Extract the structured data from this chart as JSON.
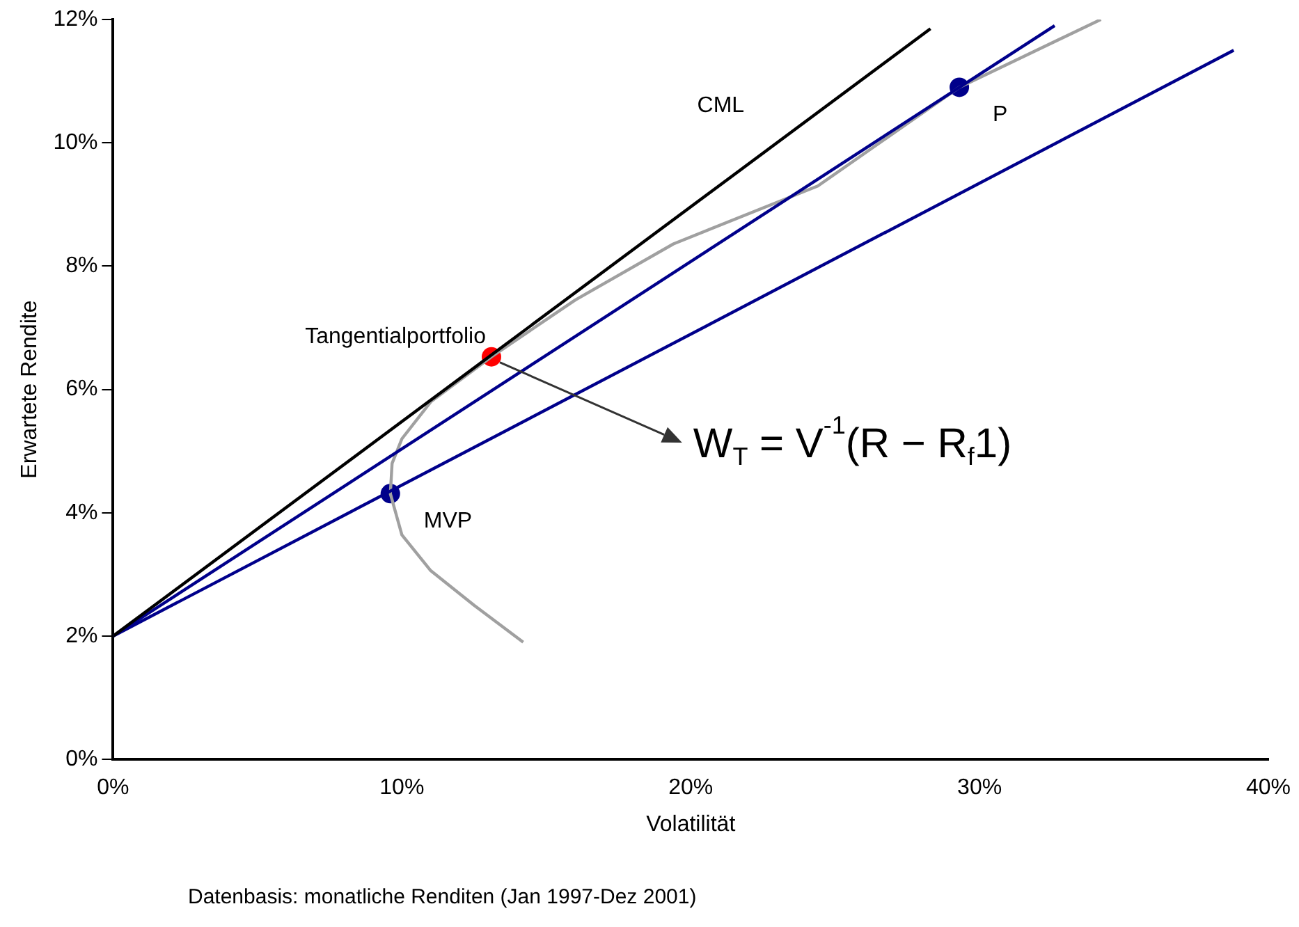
{
  "chart_data": {
    "type": "line",
    "xlabel": "Volatilität",
    "ylabel": "Erwartete Rendite",
    "xlim": [
      0,
      40
    ],
    "ylim": [
      0,
      12
    ],
    "xticks": [
      {
        "value": 0,
        "label": "0%"
      },
      {
        "value": 10,
        "label": "10%"
      },
      {
        "value": 20,
        "label": "20%"
      },
      {
        "value": 30,
        "label": "30%"
      },
      {
        "value": 40,
        "label": "40%"
      }
    ],
    "yticks": [
      {
        "value": 0,
        "label": "0%"
      },
      {
        "value": 2,
        "label": "2%"
      },
      {
        "value": 4,
        "label": "4%"
      },
      {
        "value": 6,
        "label": "6%"
      },
      {
        "value": 8,
        "label": "8%"
      },
      {
        "value": 10,
        "label": "10%"
      },
      {
        "value": 12,
        "label": "12%"
      }
    ],
    "grid": false,
    "legend": false,
    "series": [
      {
        "name": "CML",
        "color": "#000000",
        "x": [
          0,
          28.3
        ],
        "values": [
          2,
          11.85
        ],
        "marker": "none"
      },
      {
        "color": "#00008b",
        "x": [
          0,
          32.6
        ],
        "values": [
          2,
          11.9
        ],
        "marker": "none"
      },
      {
        "color": "#00008b",
        "x": [
          0,
          38.8
        ],
        "values": [
          2,
          11.5
        ],
        "marker": "none"
      },
      {
        "color": "#a0a0a0",
        "x": [
          14.2,
          12.5,
          11.0,
          10.0,
          9.6,
          9.66,
          10.0,
          11.0,
          13.1,
          16.0,
          19.4,
          24.4,
          29.3,
          34.2
        ],
        "values": [
          1.9,
          2.5,
          3.06,
          3.64,
          4.31,
          4.8,
          5.2,
          5.8,
          6.53,
          7.45,
          8.36,
          9.3,
          10.9,
          12.0
        ],
        "marker": "none"
      },
      {
        "type": "scatter",
        "name": "Tangentialportfolio",
        "color": "#ff0000",
        "x": [
          13.1
        ],
        "values": [
          6.53
        ],
        "marker": "circle"
      },
      {
        "type": "scatter",
        "name": "MVP",
        "color": "#00008b",
        "x": [
          9.6
        ],
        "values": [
          4.31
        ],
        "marker": "circle"
      },
      {
        "type": "scatter",
        "name": "P",
        "color": "#00008b",
        "x": [
          29.3
        ],
        "values": [
          10.9
        ],
        "marker": "circle"
      }
    ],
    "annotations": [
      {
        "text": "W$_{T}$ = V$^{-1}$(R − R$_{f}$1)",
        "x": 13.1,
        "y": 6.53
      },
      "Datenbasis: monatliche Renditen (Jan 1997-Dez 2001)"
    ]
  }
}
